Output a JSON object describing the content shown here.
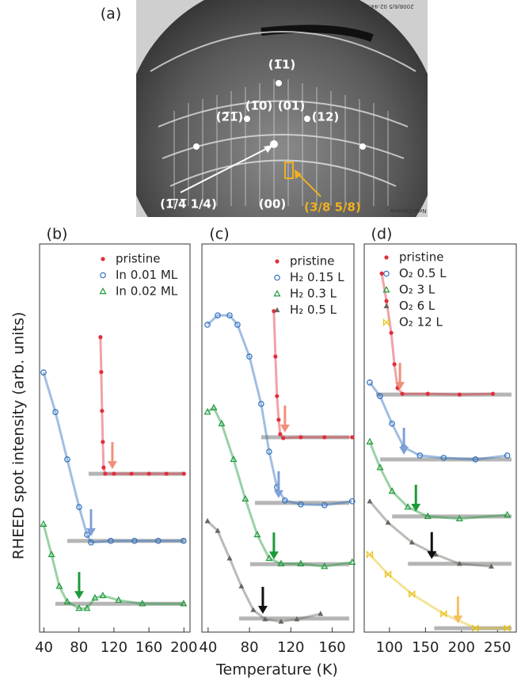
{
  "figure": {
    "xlabel": "Temperature (K)",
    "ylabel": "RHEED spot intensity (arb. units)"
  },
  "panel_a": {
    "label": "(a)",
    "labels": [
      "(1̅1)",
      "(2̅1̅)",
      "(1̅0)",
      "(01)",
      "(12)",
      "(1̅/̅4̅ 1/4)",
      "(00)",
      "(3/8 5/8)"
    ],
    "timestamp": "2008/6/5 02:44:14",
    "camera": "New Camera"
  },
  "chart_data": [
    {
      "type": "scatter",
      "panel_label": "(b)",
      "xlim": [
        35,
        207
      ],
      "xticks": [
        40,
        80,
        120,
        160,
        200
      ],
      "ylim": [
        0,
        100
      ],
      "series": [
        {
          "name": "pristine",
          "color": "#e0303c",
          "marker": "circle-filled",
          "arrow_color": "#f0907a",
          "x": [
            104.6,
            105.5,
            106.4,
            107.3,
            108.2,
            110,
            120,
            140,
            160,
            180,
            200
          ],
          "values": [
            76,
            67,
            57,
            49,
            42.4,
            40.8,
            40.8,
            40.8,
            40.8,
            40.8,
            40.8
          ],
          "transition": 118.2,
          "baseline": 40.8
        },
        {
          "name": "In 0.01 ML",
          "color": "#2f6fbf",
          "marker": "circle-open",
          "arrow_color": "#7fa0d8",
          "x": [
            39.5,
            53.1,
            66.6,
            80.2,
            89.2,
            93.8,
            116.4,
            143.5,
            170.6,
            199.6
          ],
          "values": [
            66.9,
            56.7,
            44.5,
            32.2,
            25.1,
            23.1,
            23.5,
            23.5,
            23.5,
            23.5
          ],
          "transition": 93.8,
          "baseline": 23.5
        },
        {
          "name": "In 0.02 ML",
          "color": "#1e9a3a",
          "marker": "triangle-open",
          "arrow_color": "#1e9a3a",
          "x": [
            39.5,
            48.6,
            57.6,
            66.6,
            80.2,
            89.2,
            98.3,
            107.3,
            125.4,
            152.5,
            199.6
          ],
          "values": [
            27.8,
            20,
            11.8,
            7.8,
            6.1,
            6.1,
            8.8,
            9.4,
            8.2,
            7.3,
            7.3
          ],
          "transition": 80.2,
          "baseline": 7.3
        }
      ]
    },
    {
      "type": "scatter",
      "panel_label": "(c)",
      "xlim": [
        34,
        181
      ],
      "xticks": [
        40,
        80,
        120,
        160
      ],
      "ylim": [
        0,
        100
      ],
      "series": [
        {
          "name": "pristine",
          "color": "#e0303c",
          "marker": "circle-filled",
          "arrow_color": "#f0907a",
          "x": [
            103.6,
            105.1,
            106.6,
            108.2,
            109.7,
            112.7,
            129.6,
            152.5,
            179.3
          ],
          "values": [
            82.7,
            71,
            60.8,
            54.7,
            51,
            50,
            50.2,
            50.2,
            50.2
          ],
          "transition": 114.3,
          "baseline": 50.2
        },
        {
          "name": "H₂ 0.15 L",
          "color": "#2f6fbf",
          "marker": "circle-open",
          "arrow_color": "#7fa0d8",
          "x": [
            39.4,
            49.3,
            60.8,
            68.4,
            79.9,
            91.3,
            99,
            106.6,
            114.3,
            129.6,
            152.5,
            179.3
          ],
          "values": [
            79.2,
            81.6,
            81.6,
            79.2,
            71,
            58.8,
            46.5,
            37.3,
            33.9,
            32.9,
            32.7,
            33.7
          ],
          "transition": 108.2,
          "baseline": 33.3
        },
        {
          "name": "H₂ 0.3 L",
          "color": "#1e9a3a",
          "marker": "triangle-open",
          "arrow_color": "#1e9a3a",
          "x": [
            39.4,
            45.5,
            53.1,
            64.6,
            76,
            87.5,
            99,
            110.5,
            129.6,
            152.5,
            179.3
          ],
          "values": [
            56.7,
            57.8,
            53.7,
            44.5,
            34.3,
            25.1,
            19,
            17.6,
            17.6,
            16.9,
            18
          ],
          "transition": 103.6,
          "baseline": 17.5
        },
        {
          "name": "H₂ 0.5 L",
          "color": "#66665f",
          "marker": "triangle-filled",
          "arrow_color": "#111111",
          "x": [
            39.4,
            49.3,
            60.8,
            72.2,
            83.7,
            95.2,
            110.5,
            125.8,
            148.7
          ],
          "values": [
            28.6,
            26.1,
            19,
            11.8,
            5.7,
            3.3,
            2.7,
            3.3,
            4.7
          ],
          "transition": 92.9,
          "baseline": 3.5
        }
      ]
    },
    {
      "type": "scatter",
      "panel_label": "(d)",
      "xlim": [
        65,
        276
      ],
      "xticks": [
        100,
        150,
        200,
        250
      ],
      "ylim": [
        0,
        100
      ],
      "series": [
        {
          "name": "pristine",
          "color": "#e0303c",
          "marker": "circle-filled",
          "arrow_color": "#f0907a",
          "x": [
            89.3,
            95.9,
            102.5,
            106.9,
            111.3,
            117.9,
            153.2,
            197.3,
            243.6
          ],
          "values": [
            92.4,
            85.3,
            77.1,
            69,
            62.9,
            61.4,
            61.4,
            61.2,
            61.4
          ],
          "transition": 114.6,
          "baseline": 61.2
        },
        {
          "name": "O₂ 0.5 L",
          "color": "#2f6fbf",
          "marker": "circle-open",
          "arrow_color": "#7fa0d8",
          "x": [
            72.7,
            87,
            103.6,
            120.1,
            142.2,
            175.3,
            219.4,
            263.5
          ],
          "values": [
            64.3,
            60.8,
            53.7,
            47.6,
            45.5,
            44.9,
            44.5,
            45.5
          ],
          "transition": 120.1,
          "baseline": 44.5
        },
        {
          "name": "O₂ 3 L",
          "color": "#1e9a3a",
          "marker": "triangle-open",
          "arrow_color": "#1e9a3a",
          "x": [
            72.7,
            87,
            103.6,
            125.6,
            153.2,
            197.3,
            263.5
          ],
          "values": [
            49,
            42.4,
            36.3,
            32.2,
            29.8,
            29.2,
            30.2
          ],
          "transition": 136.7,
          "baseline": 29.8
        },
        {
          "name": "O₂ 6 L",
          "color": "#66665f",
          "marker": "triangle-filled",
          "arrow_color": "#111111",
          "x": [
            72.7,
            98.1,
            131.2,
            164.2,
            197.3,
            241.4
          ],
          "values": [
            33.7,
            28.2,
            23.1,
            20,
            17.6,
            16.9
          ],
          "transition": 158.7,
          "baseline": 17.6
        },
        {
          "name": "O₂ 12 L",
          "color": "#e6c21a",
          "marker": "bowtie",
          "arrow_color": "#f5c060",
          "x": [
            72.7,
            98.1,
            131.2,
            175.3,
            219.4,
            263.5
          ],
          "values": [
            20,
            14.9,
            9.8,
            4.7,
            1,
            1
          ],
          "transition": 195.1,
          "baseline": 1
        }
      ]
    }
  ]
}
